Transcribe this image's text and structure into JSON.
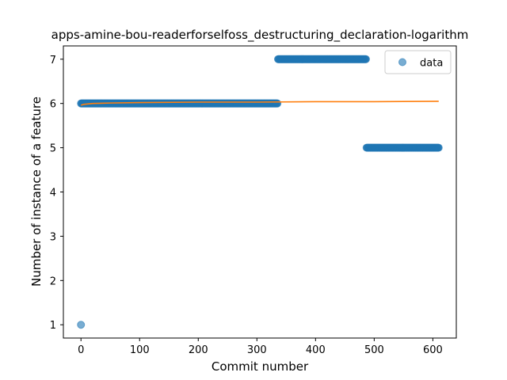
{
  "chart_data": {
    "type": "scatter",
    "title": "apps-amine-bou-readerforselfoss_destructuring_declaration-logarithm",
    "xlabel": "Commit number",
    "ylabel": "Number of instance of a feature",
    "xlim": [
      -30,
      640
    ],
    "ylim": [
      0.7,
      7.3
    ],
    "xticks": [
      0,
      100,
      200,
      300,
      400,
      500,
      600
    ],
    "yticks": [
      1,
      2,
      3,
      4,
      5,
      6,
      7
    ],
    "grid": false,
    "legend_position": "top-right",
    "series": [
      {
        "name": "data",
        "kind": "scatter",
        "color": "#1f77b4",
        "alpha": 0.6,
        "segments": [
          {
            "x_start": 0,
            "x_end": 0,
            "y": 1
          },
          {
            "x_start": 0,
            "x_end": 335,
            "y": 6
          },
          {
            "x_start": 336,
            "x_end": 486,
            "y": 7
          },
          {
            "x_start": 487,
            "x_end": 610,
            "y": 5
          }
        ]
      },
      {
        "kind": "line",
        "color": "#ff7f0e",
        "x": [
          0,
          5,
          20,
          50,
          100,
          200,
          300,
          400,
          500,
          610
        ],
        "y": [
          5.96,
          5.98,
          6.0,
          6.01,
          6.02,
          6.03,
          6.03,
          6.04,
          6.04,
          6.05
        ]
      }
    ]
  }
}
